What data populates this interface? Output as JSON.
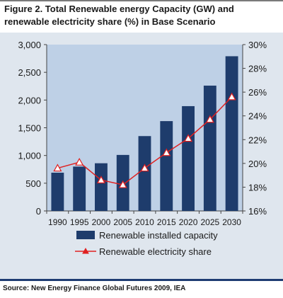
{
  "figure": {
    "title": "Figure 2. Total Renewable energy Capacity (GW) and renewable electricity share (%) in Base Scenario",
    "source": "Source:  New Energy Finance Global Futures 2009, IEA"
  },
  "colors": {
    "panel_bg": "#dfe6ee",
    "plot_bg": "#bed0e6",
    "bar": "#1e3c6c",
    "line": "#e02020"
  },
  "chart_data": {
    "type": "bar",
    "categories": [
      "1990",
      "1995",
      "2000",
      "2005",
      "2010",
      "2015",
      "2020",
      "2025",
      "2030"
    ],
    "series": [
      {
        "name": "Renewable installed capacity",
        "type": "bar",
        "axis": "left",
        "values": [
          690,
          800,
          860,
          1010,
          1350,
          1620,
          1890,
          2260,
          2790
        ]
      },
      {
        "name": "Renewable electricity share",
        "type": "line",
        "axis": "right",
        "marker": "triangle",
        "values": [
          19.6,
          20.1,
          18.6,
          18.2,
          19.6,
          20.9,
          22.1,
          23.7,
          25.6
        ]
      }
    ],
    "y_left": {
      "ylim": [
        0,
        3000
      ],
      "ticks": [
        0,
        500,
        1000,
        1500,
        2000,
        2500,
        3000
      ],
      "tick_labels": [
        "0",
        "500",
        "1,000",
        "1,500",
        "2,000",
        "2,500",
        "3,000"
      ]
    },
    "y_right": {
      "ylim": [
        16,
        30
      ],
      "ticks": [
        16,
        18,
        20,
        22,
        24,
        26,
        28,
        30
      ],
      "tick_labels": [
        "16%",
        "18%",
        "20%",
        "22%",
        "24%",
        "26%",
        "28%",
        "30%"
      ]
    },
    "grid": false,
    "legend": "bottom"
  }
}
